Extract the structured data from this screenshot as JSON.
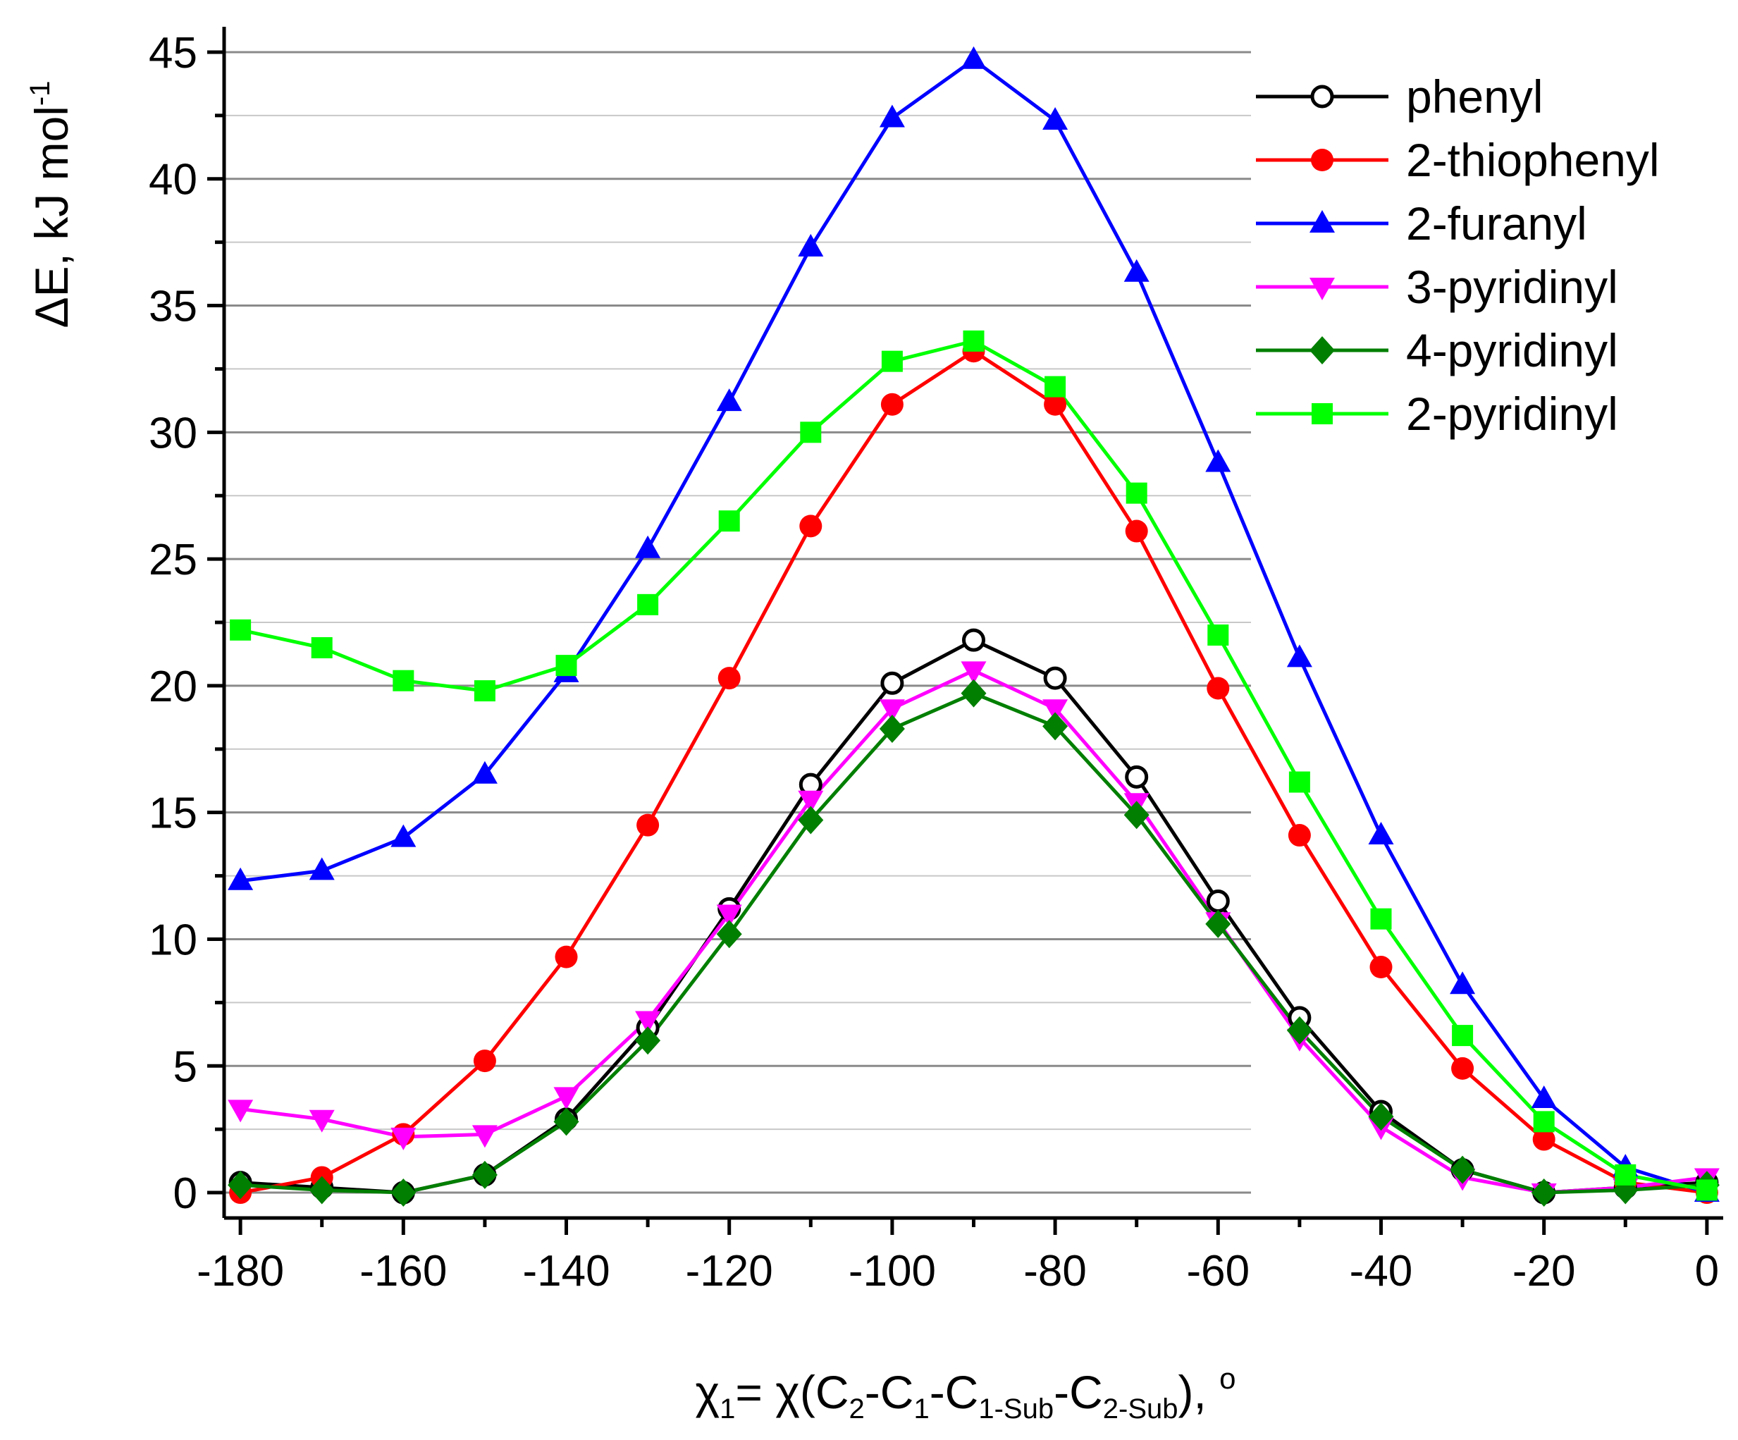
{
  "chart_data": {
    "type": "line",
    "x": [
      -180,
      -170,
      -160,
      -150,
      -140,
      -130,
      -120,
      -110,
      -100,
      -90,
      -80,
      -70,
      -60,
      -50,
      -40,
      -30,
      -20,
      -10,
      0
    ],
    "xlim": [
      -182,
      2
    ],
    "ylim": [
      -1,
      46
    ],
    "xticks": [
      -180,
      -160,
      -140,
      -120,
      -100,
      -80,
      -60,
      -40,
      -20,
      0
    ],
    "yticks": [
      0,
      5,
      10,
      15,
      20,
      25,
      30,
      35,
      40,
      45
    ],
    "grid": true,
    "legend_position": "top-right",
    "ylabel": {
      "main": "ΔE, kJ mol",
      "sup": "-1"
    },
    "xlabel": {
      "parts": [
        {
          "t": "χ",
          "style": "normal"
        },
        {
          "t": "1",
          "style": "sub"
        },
        {
          "t": "= χ(C",
          "style": "normal"
        },
        {
          "t": "2",
          "style": "sub"
        },
        {
          "t": "-C",
          "style": "normal"
        },
        {
          "t": "1",
          "style": "sub"
        },
        {
          "t": "-C",
          "style": "normal"
        },
        {
          "t": "1-Sub",
          "style": "sub"
        },
        {
          "t": "-C",
          "style": "normal"
        },
        {
          "t": "2-Sub",
          "style": "sub"
        },
        {
          "t": "), ",
          "style": "normal"
        },
        {
          "t": "o",
          "style": "sup"
        }
      ]
    },
    "series": [
      {
        "name": "phenyl",
        "color": "#000000",
        "marker": "circle-open",
        "values": [
          0.4,
          0.2,
          0.0,
          0.7,
          2.9,
          6.5,
          11.2,
          16.1,
          20.1,
          21.8,
          20.3,
          16.4,
          11.5,
          6.9,
          3.2,
          0.9,
          0.0,
          0.2,
          0.4
        ]
      },
      {
        "name": "2-thiophenyl",
        "color": "#ff0000",
        "marker": "circle",
        "values": [
          0.0,
          0.6,
          2.3,
          5.2,
          9.3,
          14.5,
          20.3,
          26.3,
          31.1,
          33.2,
          31.1,
          26.1,
          19.9,
          14.1,
          8.9,
          4.9,
          2.1,
          0.4,
          0.0
        ]
      },
      {
        "name": "2-furanyl",
        "color": "#0000ff",
        "marker": "triangle-up",
        "values": [
          12.3,
          12.7,
          14.0,
          16.5,
          20.5,
          25.4,
          31.2,
          37.3,
          42.4,
          44.7,
          42.3,
          36.3,
          28.8,
          21.1,
          14.1,
          8.2,
          3.7,
          1.0,
          0.0
        ]
      },
      {
        "name": "3-pyridinyl",
        "color": "#ff00ff",
        "marker": "triangle-down",
        "values": [
          3.3,
          2.9,
          2.2,
          2.3,
          3.8,
          6.8,
          11.0,
          15.5,
          19.1,
          20.6,
          19.1,
          15.4,
          10.7,
          6.1,
          2.6,
          0.6,
          0.0,
          0.2,
          0.6
        ]
      },
      {
        "name": "4-pyridinyl",
        "color": "#007f00",
        "marker": "diamond",
        "values": [
          0.3,
          0.1,
          0.0,
          0.7,
          2.8,
          6.0,
          10.2,
          14.7,
          18.3,
          19.7,
          18.4,
          14.9,
          10.6,
          6.4,
          3.0,
          0.9,
          0.0,
          0.1,
          0.3
        ]
      },
      {
        "name": "2-pyridinyl",
        "color": "#00ff00",
        "marker": "square",
        "values": [
          22.2,
          21.5,
          20.2,
          19.8,
          20.8,
          23.2,
          26.5,
          30.0,
          32.8,
          33.6,
          31.8,
          27.6,
          22.0,
          16.2,
          10.8,
          6.2,
          2.8,
          0.7,
          0.1
        ]
      }
    ]
  }
}
